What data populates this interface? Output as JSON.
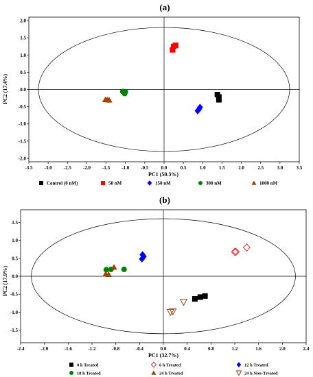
{
  "chart_data": [
    {
      "type": "scatter",
      "panel_label": "(a)",
      "xlabel": "PC1 (50.3%)",
      "ylabel": "PC2 (17.4%)",
      "xlim": [
        -3.5,
        3.5
      ],
      "ylim": [
        -2.1,
        2.1
      ],
      "x_ticks": [
        "-3.5",
        "-3.0",
        "-2.5",
        "-2.0",
        "-1.5",
        "-1.0",
        "-0.5",
        "0.0",
        "0.5",
        "1.0",
        "1.5",
        "2.0",
        "2.5",
        "3.0",
        "3.5"
      ],
      "y_ticks": [
        "2.0",
        "1.5",
        "1.0",
        "0.5",
        "0.0",
        "-0.5",
        "-1.0",
        "-1.5",
        "-2.0"
      ],
      "ellipse": {
        "rx": 3.25,
        "ry": 1.8
      },
      "series": [
        {
          "name": "Control (0 nM)",
          "color": "#000000",
          "marker": "square",
          "points": [
            [
              1.38,
              -0.15
            ],
            [
              1.42,
              -0.22
            ],
            [
              1.42,
              -0.3
            ]
          ]
        },
        {
          "name": "50 nM",
          "color": "#ff0000",
          "marker": "square",
          "points": [
            [
              0.22,
              1.15
            ],
            [
              0.25,
              1.25
            ],
            [
              0.3,
              1.28
            ]
          ]
        },
        {
          "name": "150 nM",
          "color": "#0000ff",
          "marker": "diamond",
          "points": [
            [
              0.87,
              -0.62
            ],
            [
              0.9,
              -0.58
            ],
            [
              0.93,
              -0.52
            ]
          ]
        },
        {
          "name": "300 nM",
          "color": "#008000",
          "marker": "circle",
          "points": [
            [
              -1.07,
              -0.06
            ],
            [
              -1.02,
              -0.12
            ],
            [
              -1.0,
              -0.07
            ]
          ]
        },
        {
          "name": "1000 nM",
          "color": "#a0410a",
          "marker": "triangle",
          "points": [
            [
              -1.52,
              -0.3
            ],
            [
              -1.47,
              -0.3
            ],
            [
              -1.42,
              -0.31
            ]
          ]
        }
      ]
    },
    {
      "type": "scatter",
      "panel_label": "(b)",
      "xlabel": "PC1 (32.7%)",
      "ylabel": "PC2 (17.9%)",
      "xlim": [
        -2.4,
        2.4
      ],
      "ylim": [
        -1.85,
        1.85
      ],
      "x_ticks": [
        "-2.4",
        "-2.0",
        "-1.6",
        "-1.2",
        "-0.8",
        "-0.4",
        "0.0",
        "0.4",
        "0.8",
        "1.2",
        "1.6",
        "2.0",
        "2.4"
      ],
      "y_ticks": [
        "1.5",
        "1.0",
        "0.5",
        "0.0",
        "-0.5",
        "-1.0",
        "-1.5"
      ],
      "ellipse": {
        "rx": 2.22,
        "ry": 1.6
      },
      "series": [
        {
          "name": "0 h Treated",
          "color": "#000000",
          "marker": "square",
          "points": [
            [
              0.53,
              -0.63
            ],
            [
              0.62,
              -0.58
            ],
            [
              0.7,
              -0.55
            ]
          ]
        },
        {
          "name": "6 h Treated",
          "color": "#e03030",
          "marker": "diamond-open",
          "points": [
            [
              1.2,
              0.68
            ],
            [
              1.22,
              0.68
            ],
            [
              1.4,
              0.8
            ]
          ]
        },
        {
          "name": "12 h Treated",
          "color": "#0000ff",
          "marker": "diamond",
          "points": [
            [
              -0.36,
              0.48
            ],
            [
              -0.33,
              0.55
            ],
            [
              -0.35,
              0.6
            ]
          ]
        },
        {
          "name": "18 h Treated",
          "color": "#008000",
          "marker": "circle",
          "points": [
            [
              -0.96,
              0.18
            ],
            [
              -0.88,
              0.19
            ],
            [
              -0.66,
              0.19
            ]
          ]
        },
        {
          "name": "24 h Treated",
          "color": "#a0410a",
          "marker": "triangle",
          "points": [
            [
              -0.97,
              0.06
            ],
            [
              -0.92,
              0.05
            ],
            [
              -0.83,
              0.25
            ]
          ]
        },
        {
          "name": "24 h Non-Treated",
          "color": "#a0410a",
          "marker": "triangle-down-open",
          "points": [
            [
              0.12,
              -1.0
            ],
            [
              0.16,
              -0.98
            ],
            [
              0.34,
              -0.72
            ]
          ]
        }
      ]
    }
  ]
}
